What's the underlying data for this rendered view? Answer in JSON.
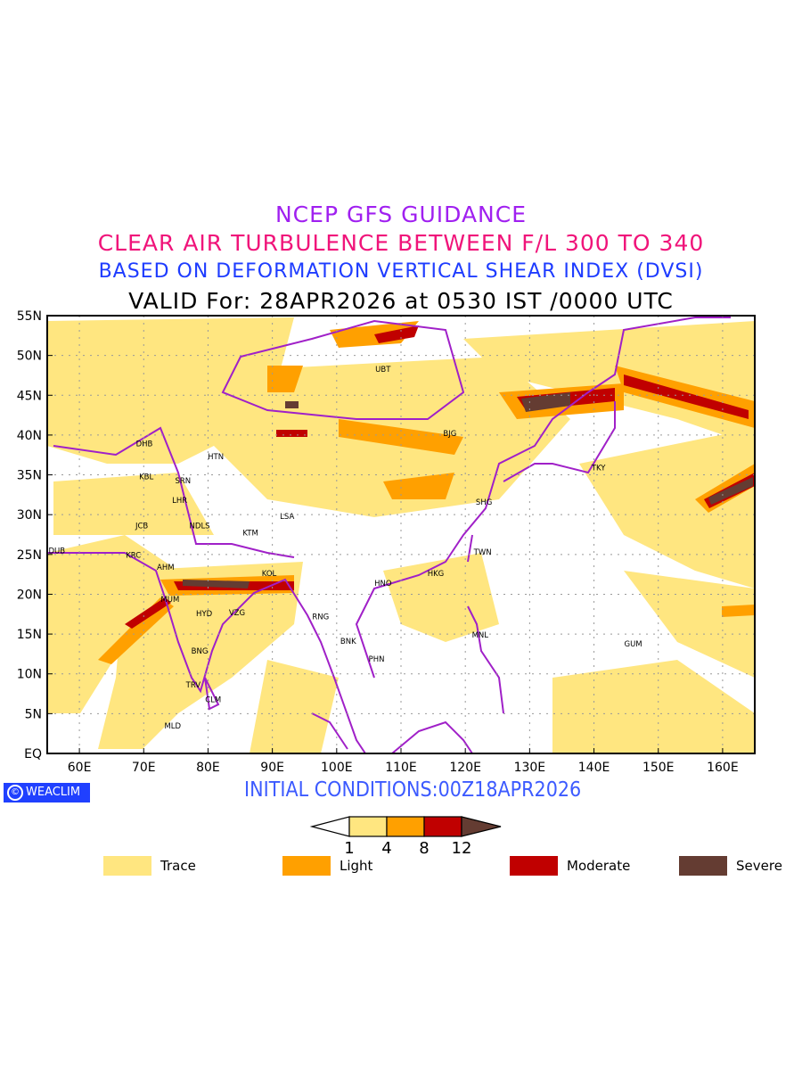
{
  "titles": {
    "line1": "NCEP GFS GUIDANCE",
    "line2": "CLEAR AIR TURBULENCE BETWEEN F/L 300 TO 340",
    "line3": "BASED ON DEFORMATION VERTICAL SHEAR INDEX (DVSI)",
    "line4": "VALID For: 28APR2026 at 0530 IST /0000 UTC"
  },
  "initial_conditions": "INITIAL CONDITIONS:00Z18APR2026",
  "logo": {
    "symbol": "©",
    "text": "WEACLIM"
  },
  "map": {
    "lon_range": [
      55,
      165
    ],
    "lat_range": [
      0,
      55
    ],
    "lon_ticks": [
      "60E",
      "70E",
      "80E",
      "90E",
      "100E",
      "110E",
      "120E",
      "130E",
      "140E",
      "150E",
      "160E"
    ],
    "lat_ticks": [
      "EQ",
      "5N",
      "10N",
      "15N",
      "20N",
      "25N",
      "30N",
      "35N",
      "40N",
      "45N",
      "50N",
      "55N"
    ],
    "boundary_color": "#a020c8",
    "cities": [
      {
        "name": "UBT",
        "lon": 107.2,
        "lat": 48.3
      },
      {
        "name": "BJG",
        "lon": 117.6,
        "lat": 40.2
      },
      {
        "name": "DHB",
        "lon": 70.1,
        "lat": 38.9
      },
      {
        "name": "HTN",
        "lon": 81.2,
        "lat": 37.3
      },
      {
        "name": "KBL",
        "lon": 70.4,
        "lat": 34.8
      },
      {
        "name": "SRN",
        "lon": 76.1,
        "lat": 34.3
      },
      {
        "name": "TKY",
        "lon": 140.7,
        "lat": 35.9
      },
      {
        "name": "LHR",
        "lon": 75.6,
        "lat": 31.8
      },
      {
        "name": "SHG",
        "lon": 122.9,
        "lat": 31.6
      },
      {
        "name": "LSA",
        "lon": 92.3,
        "lat": 29.8
      },
      {
        "name": "JCB",
        "lon": 69.7,
        "lat": 28.6
      },
      {
        "name": "NDLS",
        "lon": 78.7,
        "lat": 28.6
      },
      {
        "name": "KTM",
        "lon": 86.6,
        "lat": 27.7
      },
      {
        "name": "DUB",
        "lon": 56.5,
        "lat": 25.5
      },
      {
        "name": "TWN",
        "lon": 122.7,
        "lat": 25.3
      },
      {
        "name": "KRC",
        "lon": 68.4,
        "lat": 24.9
      },
      {
        "name": "AHM",
        "lon": 73.4,
        "lat": 23.4
      },
      {
        "name": "KOL",
        "lon": 89.5,
        "lat": 22.6
      },
      {
        "name": "HKG",
        "lon": 115.4,
        "lat": 22.6
      },
      {
        "name": "HNO",
        "lon": 107.2,
        "lat": 21.4
      },
      {
        "name": "MUM",
        "lon": 74.1,
        "lat": 19.4
      },
      {
        "name": "HYD",
        "lon": 79.4,
        "lat": 17.6
      },
      {
        "name": "VZG",
        "lon": 84.5,
        "lat": 17.7
      },
      {
        "name": "RNG",
        "lon": 97.5,
        "lat": 17.2
      },
      {
        "name": "MNL",
        "lon": 122.3,
        "lat": 14.9
      },
      {
        "name": "BNK",
        "lon": 101.8,
        "lat": 14.1
      },
      {
        "name": "GUM",
        "lon": 146.1,
        "lat": 13.8
      },
      {
        "name": "PHN",
        "lon": 106.2,
        "lat": 11.9
      },
      {
        "name": "BNG",
        "lon": 78.7,
        "lat": 12.9
      },
      {
        "name": "TRV",
        "lon": 77.7,
        "lat": 8.6
      },
      {
        "name": "CLM",
        "lon": 80.8,
        "lat": 6.8
      },
      {
        "name": "MLD",
        "lon": 74.5,
        "lat": 3.5
      }
    ]
  },
  "colorbar": {
    "thresholds": [
      "1",
      "4",
      "8",
      "12"
    ],
    "colors": [
      "#ffe680",
      "#ffa000",
      "#c00000",
      "#643c32"
    ]
  },
  "legend": [
    {
      "label": "Trace",
      "color": "#ffe680"
    },
    {
      "label": "Light",
      "color": "#ffa000"
    },
    {
      "label": "Moderate",
      "color": "#c00000"
    },
    {
      "label": "Severe",
      "color": "#643c32"
    }
  ]
}
